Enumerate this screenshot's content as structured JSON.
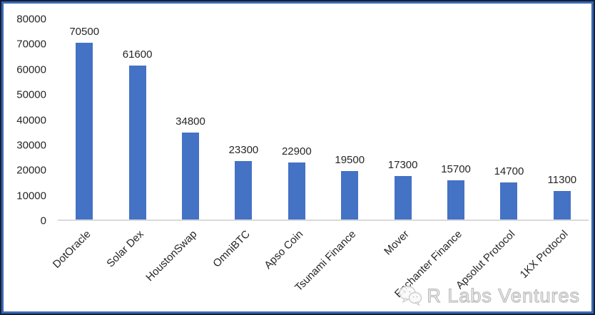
{
  "chart_data": {
    "type": "bar",
    "categories": [
      "DotOracle",
      "Solar Dex",
      "HoustonSwap",
      "OmniBTC",
      "Apso Coin",
      "Tsunami Finance",
      "Mover",
      "Enchanter Finance",
      "Apsolut Protocol",
      "1KX Protocol"
    ],
    "values": [
      70500,
      61600,
      34800,
      23300,
      22900,
      19500,
      17300,
      15700,
      14700,
      11300
    ],
    "data_labels": [
      "70500",
      "61600",
      "34800",
      "23300",
      "22900",
      "19500",
      "17300",
      "15700",
      "14700",
      "11300"
    ],
    "title": "",
    "xlabel": "",
    "ylabel": "",
    "ylim": [
      0,
      80000
    ],
    "y_ticks": [
      0,
      10000,
      20000,
      30000,
      40000,
      50000,
      60000,
      70000,
      80000
    ],
    "grid": "off",
    "legend": "none",
    "bar_color": "#4472c4",
    "axis_line_color": "#d9d9d9",
    "label_color": "#262626",
    "category_label_rotation_deg": -45
  },
  "frame": {
    "outer_border_color": "#131e3a",
    "inner_border_color": "#3b68b5"
  },
  "watermark": {
    "logo": "wechat-chat-bubbles-icon",
    "text": "R Labs Ventures",
    "text_color": "#c9c9c9"
  }
}
